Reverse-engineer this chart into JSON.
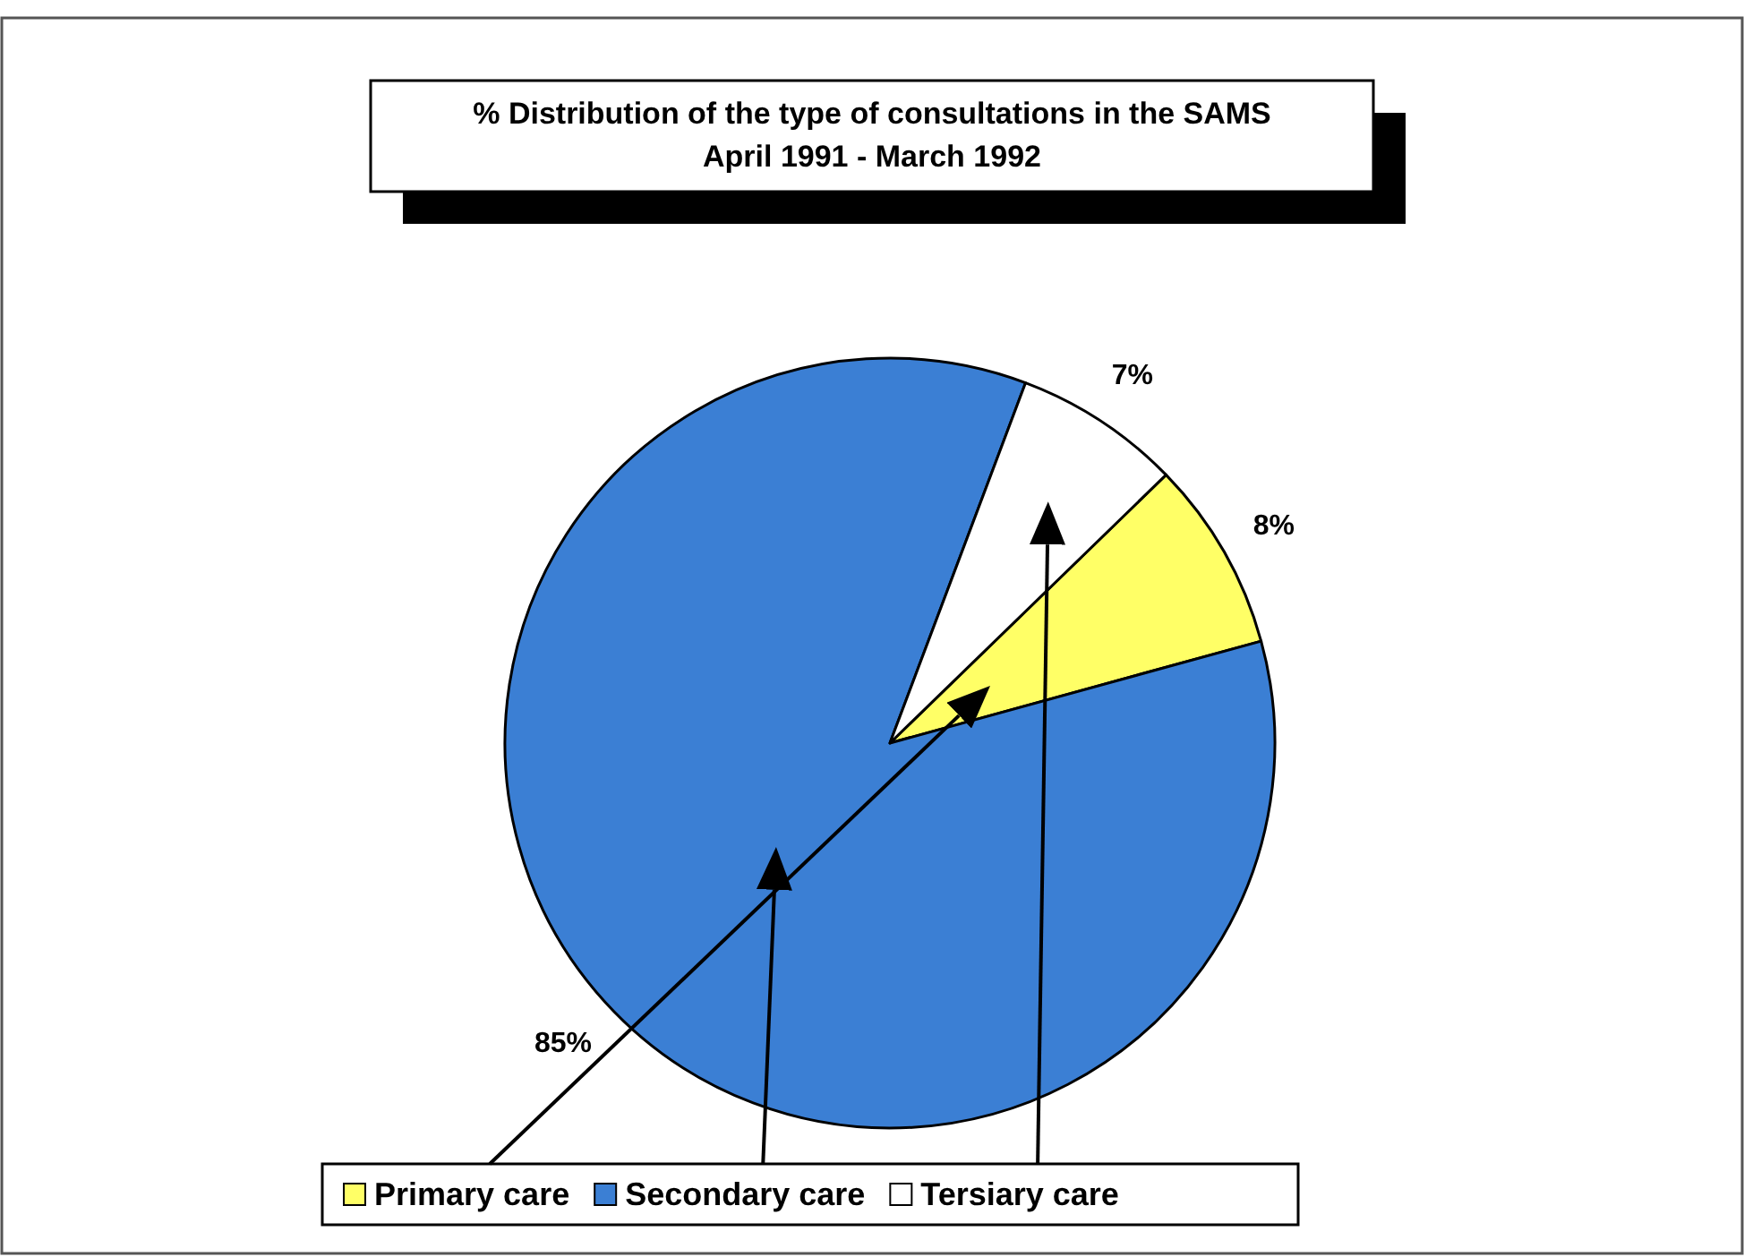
{
  "chart_data": {
    "type": "pie",
    "title": "% Distribution of the type of consultations in the SAMS",
    "subtitle": "April 1991 - March 1992",
    "categories": [
      "Primary care",
      "Secondary care",
      "Tersiary care"
    ],
    "values": [
      8,
      85,
      7
    ],
    "value_labels": [
      "8%",
      "85%",
      "7%"
    ],
    "colors": [
      "#ffff66",
      "#3b7fd4",
      "#ffffff"
    ],
    "legend": "bottom"
  }
}
